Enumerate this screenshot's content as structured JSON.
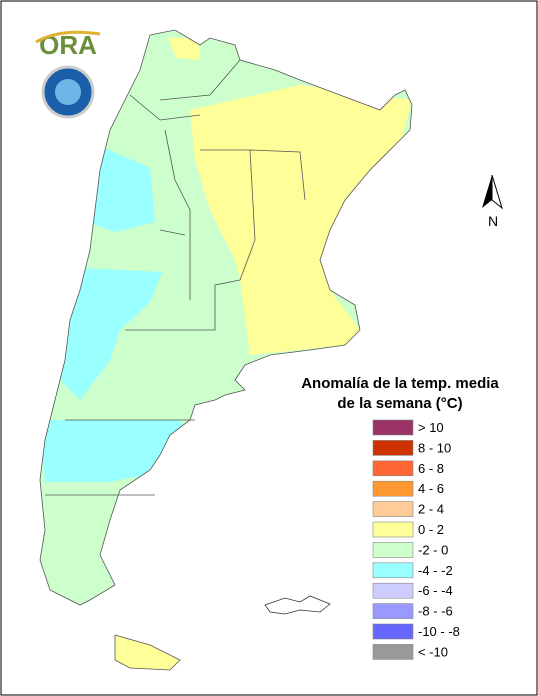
{
  "logo": {
    "text": "ORA"
  },
  "north_arrow": "N",
  "legend": {
    "title_lines": [
      "Anomalía de la temp. media",
      "de la semana (°C)"
    ],
    "items": [
      {
        "label": "> 10",
        "color": "#993366"
      },
      {
        "label": "8 - 10",
        "color": "#cc3300"
      },
      {
        "label": "6 - 8",
        "color": "#ff6633"
      },
      {
        "label": "4 - 6",
        "color": "#ff9933"
      },
      {
        "label": "2 - 4",
        "color": "#ffcc99"
      },
      {
        "label": "0 - 2",
        "color": "#ffff99"
      },
      {
        "label": "-2 - 0",
        "color": "#ccffcc"
      },
      {
        "label": "-4 - -2",
        "color": "#99ffff"
      },
      {
        "label": "-6 - -4",
        "color": "#ccccff"
      },
      {
        "label": "-8 - -6",
        "color": "#9999ff"
      },
      {
        "label": "-10 - -8",
        "color": "#6666ff"
      },
      {
        "label": "< -10",
        "color": "#999999"
      }
    ]
  }
}
